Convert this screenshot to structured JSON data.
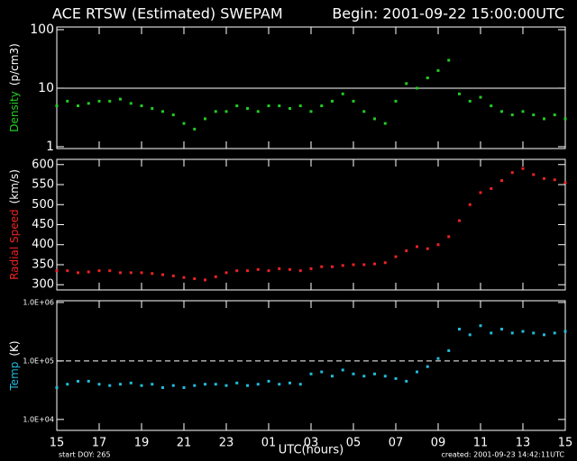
{
  "chart_data": [
    {
      "type": "scatter",
      "title": "ACE RTSW (Estimated) SWEPAM",
      "subtitle": "Begin: 2001-09-22 15:00:00UTC",
      "ylabel": "Density",
      "yunit": "(p/cm3)",
      "log": true,
      "color": "#22cc22",
      "xlim": [
        0,
        24
      ],
      "xticks": [
        0,
        2,
        4,
        6,
        8,
        10,
        12,
        14,
        16,
        18,
        20,
        22,
        24
      ],
      "ylim": [
        0.93,
        111
      ],
      "yticks": [
        1,
        10,
        100
      ],
      "hline": 10,
      "x": [
        0,
        0.5,
        1,
        1.5,
        2,
        2.5,
        3,
        3.5,
        4,
        4.5,
        5,
        5.5,
        6,
        6.5,
        7,
        7.5,
        8,
        8.5,
        9,
        9.5,
        10,
        10.5,
        11,
        11.5,
        12,
        12.5,
        13,
        13.5,
        14,
        14.5,
        15,
        15.5,
        16,
        16.5,
        17,
        17.5,
        18,
        18.5,
        19,
        19.5,
        20,
        20.5,
        21,
        21.5,
        22,
        22.5,
        23,
        23.5,
        24
      ],
      "values": [
        5,
        6,
        5,
        5.5,
        6,
        6,
        6.5,
        5.5,
        5,
        4.5,
        4,
        3.5,
        2.5,
        2,
        3,
        4,
        4,
        5,
        4.5,
        4,
        5,
        5,
        4.5,
        5,
        4,
        5,
        6,
        8,
        6,
        4,
        3,
        2.5,
        6,
        12,
        10,
        15,
        20,
        30,
        8,
        6,
        7,
        5,
        4,
        3.5,
        4,
        3.5,
        3,
        3.5,
        3
      ]
    },
    {
      "type": "scatter",
      "ylabel": "Radial Speed",
      "yunit": "(km/s)",
      "log": false,
      "color": "#ee2222",
      "xlim": [
        0,
        24
      ],
      "xticks": [
        0,
        2,
        4,
        6,
        8,
        10,
        12,
        14,
        16,
        18,
        20,
        22,
        24
      ],
      "ylim": [
        287,
        613
      ],
      "yticks": [
        300,
        350,
        400,
        450,
        500,
        550,
        600
      ],
      "x": [
        0,
        0.5,
        1,
        1.5,
        2,
        2.5,
        3,
        3.5,
        4,
        4.5,
        5,
        5.5,
        6,
        6.5,
        7,
        7.5,
        8,
        8.5,
        9,
        9.5,
        10,
        10.5,
        11,
        11.5,
        12,
        12.5,
        13,
        13.5,
        14,
        14.5,
        15,
        15.5,
        16,
        16.5,
        17,
        17.5,
        18,
        18.5,
        19,
        19.5,
        20,
        20.5,
        21,
        21.5,
        22,
        22.5,
        23,
        23.5,
        24
      ],
      "values": [
        335,
        335,
        330,
        332,
        335,
        335,
        330,
        330,
        330,
        328,
        325,
        322,
        318,
        315,
        312,
        320,
        330,
        335,
        335,
        338,
        335,
        340,
        338,
        335,
        340,
        345,
        345,
        348,
        350,
        350,
        352,
        355,
        370,
        385,
        395,
        390,
        400,
        420,
        460,
        500,
        530,
        540,
        560,
        580,
        590,
        575,
        565,
        562,
        555
      ]
    },
    {
      "type": "scatter",
      "ylabel": "Temp",
      "yunit": "(K)",
      "log": true,
      "color": "#22bbdd",
      "xlim": [
        0,
        24
      ],
      "xticks": [
        {
          "value": 0,
          "label": "15"
        },
        {
          "value": 2,
          "label": "17"
        },
        {
          "value": 4,
          "label": "19"
        },
        {
          "value": 6,
          "label": "21"
        },
        {
          "value": 8,
          "label": "23"
        },
        {
          "value": 10,
          "label": "01"
        },
        {
          "value": 12,
          "label": "03"
        },
        {
          "value": 14,
          "label": "05"
        },
        {
          "value": 16,
          "label": "07"
        },
        {
          "value": 18,
          "label": "09"
        },
        {
          "value": 20,
          "label": "11"
        },
        {
          "value": 22,
          "label": "13"
        },
        {
          "value": 24,
          "label": "15"
        }
      ],
      "ylim": [
        6500,
        1070000
      ],
      "yticks": [
        {
          "value": 10000,
          "label": "1.0E+04"
        },
        {
          "value": 100000,
          "label": "1.0E+05"
        },
        {
          "value": 1000000,
          "label": "1.0E+06"
        }
      ],
      "hline": 100000,
      "xlabel": "UTC(hours)",
      "annotations": [
        "start DOY: 265",
        "created: 2001-09-23 14:42:11UTC"
      ],
      "x": [
        0,
        0.5,
        1,
        1.5,
        2,
        2.5,
        3,
        3.5,
        4,
        4.5,
        5,
        5.5,
        6,
        6.5,
        7,
        7.5,
        8,
        8.5,
        9,
        9.5,
        10,
        10.5,
        11,
        11.5,
        12,
        12.5,
        13,
        13.5,
        14,
        14.5,
        15,
        15.5,
        16,
        16.5,
        17,
        17.5,
        18,
        18.5,
        19,
        19.5,
        20,
        20.5,
        21,
        21.5,
        22,
        22.5,
        23,
        23.5,
        24
      ],
      "values": [
        35000,
        40000,
        45000,
        45000,
        40000,
        38000,
        40000,
        42000,
        38000,
        40000,
        35000,
        38000,
        35000,
        38000,
        40000,
        40000,
        38000,
        42000,
        38000,
        40000,
        45000,
        40000,
        42000,
        40000,
        60000,
        65000,
        55000,
        70000,
        60000,
        55000,
        60000,
        55000,
        50000,
        45000,
        65000,
        80000,
        110000,
        150000,
        350000,
        280000,
        400000,
        300000,
        350000,
        300000,
        320000,
        300000,
        280000,
        300000,
        320000
      ]
    }
  ]
}
